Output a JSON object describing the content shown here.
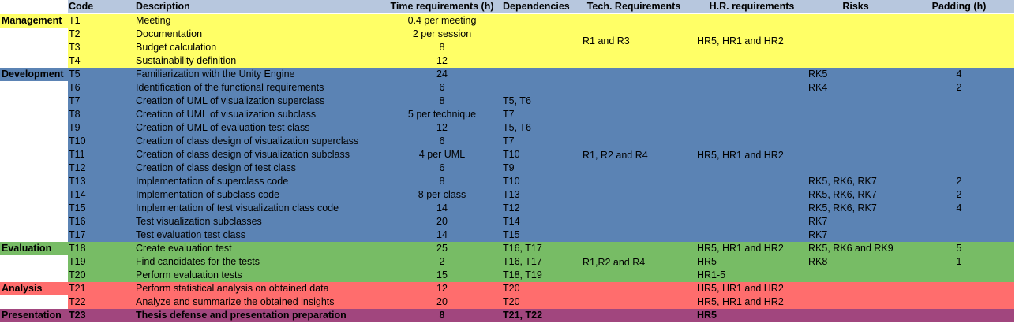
{
  "colors": {
    "header": "#b7c7de",
    "management": "#ffff66",
    "development": "#5b83b4",
    "evaluation": "#77bc65",
    "analysis": "#ff6d6d",
    "presentation": "#a1467e"
  },
  "headers": {
    "code": "Code",
    "description": "Description",
    "time": "Time requirements (h)",
    "dependencies": "Dependencies",
    "tech": "Tech. Requirements",
    "hr": "H.R. requirements",
    "risks": "Risks",
    "padding": "Padding (h)"
  },
  "groups": [
    {
      "label": "Management",
      "color_key": "management",
      "tech": "R1 and R3",
      "hr": "HR5, HR1 and HR2",
      "rows": [
        {
          "code": "T1",
          "desc": "Meeting",
          "time": "0.4 per meeting",
          "dep": "",
          "hr": "",
          "risks": "",
          "pad": ""
        },
        {
          "code": "T2",
          "desc": "Documentation",
          "time": "2 per session",
          "dep": "",
          "hr": "",
          "risks": "",
          "pad": ""
        },
        {
          "code": "T3",
          "desc": "Budget calculation",
          "time": "8",
          "dep": "",
          "hr": "",
          "risks": "",
          "pad": ""
        },
        {
          "code": "T4",
          "desc": "Sustainability definition",
          "time": "12",
          "dep": "",
          "hr": "",
          "risks": "",
          "pad": ""
        }
      ]
    },
    {
      "label": "Development",
      "color_key": "development",
      "tech": "R1, R2 and R4",
      "hr": "HR5, HR1 and HR2",
      "rows": [
        {
          "code": "T5",
          "desc": "Familiarization with the Unity Engine",
          "time": "24",
          "dep": "",
          "hr": "",
          "risks": "RK5",
          "pad": "4"
        },
        {
          "code": "T6",
          "desc": "Identification of the functional requirements",
          "time": "6",
          "dep": "",
          "hr": "",
          "risks": "RK4",
          "pad": "2"
        },
        {
          "code": "T7",
          "desc": "Creation of UML of visualization superclass",
          "time": "8",
          "dep": "T5, T6",
          "hr": "",
          "risks": "",
          "pad": ""
        },
        {
          "code": "T8",
          "desc": "Creation of UML of visualization subclass",
          "time": "5 per technique",
          "dep": "T7",
          "hr": "",
          "risks": "",
          "pad": ""
        },
        {
          "code": "T9",
          "desc": "Creation of UML of evaluation test class",
          "time": "12",
          "dep": "T5, T6",
          "hr": "",
          "risks": "",
          "pad": ""
        },
        {
          "code": "T10",
          "desc": "Creation of class design of visualization superclass",
          "time": "6",
          "dep": "T7",
          "hr": "",
          "risks": "",
          "pad": ""
        },
        {
          "code": "T11",
          "desc": "Creation of class design of visualization subclass",
          "time": "4 per UML",
          "dep": "T10",
          "hr": "",
          "risks": "",
          "pad": ""
        },
        {
          "code": "T12",
          "desc": "Creation of class design of test class",
          "time": "6",
          "dep": "T9",
          "hr": "",
          "risks": "",
          "pad": ""
        },
        {
          "code": "T13",
          "desc": "Implementation of superclass code",
          "time": "8",
          "dep": "T10",
          "hr": "",
          "risks": "RK5, RK6, RK7",
          "pad": "2"
        },
        {
          "code": "T14",
          "desc": "Implementation of subclass code",
          "time": "8 per class",
          "dep": "T13",
          "hr": "",
          "risks": "RK5, RK6, RK7",
          "pad": "2"
        },
        {
          "code": "T15",
          "desc": "Implementation of test visualization class code",
          "time": "14",
          "dep": "T12",
          "hr": "",
          "risks": "RK5, RK6, RK7",
          "pad": "4"
        },
        {
          "code": "T16",
          "desc": "Test visualization subclasses",
          "time": "20",
          "dep": "T14",
          "hr": "",
          "risks": "RK7",
          "pad": ""
        },
        {
          "code": "T17",
          "desc": "Test evaluation test class",
          "time": "14",
          "dep": "T15",
          "hr": "",
          "risks": "RK7",
          "pad": ""
        }
      ]
    },
    {
      "label": "Evaluation",
      "color_key": "evaluation",
      "tech": "R1,R2 and R4",
      "hr": "",
      "rows": [
        {
          "code": "T18",
          "desc": "Create evaluation test",
          "time": "25",
          "dep": "T16, T17",
          "hr": "HR5, HR1 and HR2",
          "risks": "RK5, RK6 and RK9",
          "pad": "5"
        },
        {
          "code": "T19",
          "desc": "Find candidates for the tests",
          "time": "2",
          "dep": "T16, T17",
          "hr": "HR5",
          "risks": "RK8",
          "pad": "1"
        },
        {
          "code": "T20",
          "desc": "Perform evaluation tests",
          "time": "15",
          "dep": "T18, T19",
          "hr": "HR1-5",
          "risks": "",
          "pad": ""
        }
      ]
    },
    {
      "label": "Analysis",
      "color_key": "analysis",
      "tech": "",
      "hr": "",
      "rows": [
        {
          "code": "T21",
          "desc": "Perform statistical analysis on obtained data",
          "time": "12",
          "dep": "T20",
          "hr": "HR5, HR1 and HR2",
          "risks": "",
          "pad": ""
        },
        {
          "code": "T22",
          "desc": "Analyze and summarize the obtained insights",
          "time": "20",
          "dep": "T20",
          "hr": "HR5, HR1 and HR2",
          "risks": "",
          "pad": ""
        }
      ]
    },
    {
      "label": "Presentation",
      "color_key": "presentation",
      "tech": "",
      "hr": "",
      "bold": true,
      "rows": [
        {
          "code": "T23",
          "desc": "Thesis defense and presentation preparation",
          "time": "8",
          "dep": "T21, T22",
          "hr": "HR5",
          "risks": "",
          "pad": ""
        }
      ]
    }
  ]
}
